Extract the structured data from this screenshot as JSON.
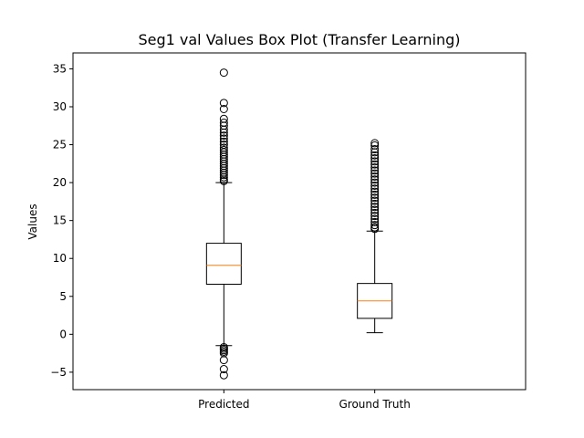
{
  "chart_data": {
    "type": "box",
    "title": "Seg1 val Values Box Plot (Transfer Learning)",
    "xlabel": "",
    "ylabel": "Values",
    "categories": [
      "Predicted",
      "Ground Truth"
    ],
    "ylim": [
      -7.3,
      37.1
    ],
    "yticks": [
      -5,
      0,
      5,
      10,
      15,
      20,
      25,
      30,
      35
    ],
    "grid": false,
    "colors": {
      "box": "#000000",
      "median": "#ff7f0e",
      "flier": "#000000"
    },
    "boxes": [
      {
        "name": "Predicted",
        "whisker_low": -1.5,
        "q1": 6.6,
        "median": 9.1,
        "q3": 12.0,
        "whisker_high": 20.0,
        "fliers": [
          34.5,
          30.5,
          29.7,
          28.4,
          27.9,
          27.5,
          27.0,
          26.6,
          26.2,
          25.8,
          25.4,
          25.0,
          24.6,
          24.3,
          24.0,
          23.7,
          23.4,
          23.1,
          22.8,
          22.5,
          22.2,
          21.9,
          21.6,
          21.3,
          21.0,
          20.7,
          20.4,
          20.2,
          -1.7,
          -1.9,
          -2.1,
          -2.3,
          -2.5,
          -3.4,
          -4.6,
          -5.4
        ]
      },
      {
        "name": "Ground Truth",
        "whisker_low": 0.2,
        "q1": 2.1,
        "median": 4.4,
        "q3": 6.7,
        "whisker_high": 13.6,
        "fliers": [
          25.2,
          24.9,
          24.4,
          24.0,
          23.6,
          23.2,
          22.8,
          22.4,
          22.0,
          21.6,
          21.2,
          20.8,
          20.4,
          20.0,
          19.6,
          19.2,
          18.8,
          18.4,
          18.0,
          17.6,
          17.2,
          16.8,
          16.4,
          16.0,
          15.6,
          15.2,
          14.8,
          14.4,
          14.1,
          13.9
        ]
      }
    ]
  }
}
